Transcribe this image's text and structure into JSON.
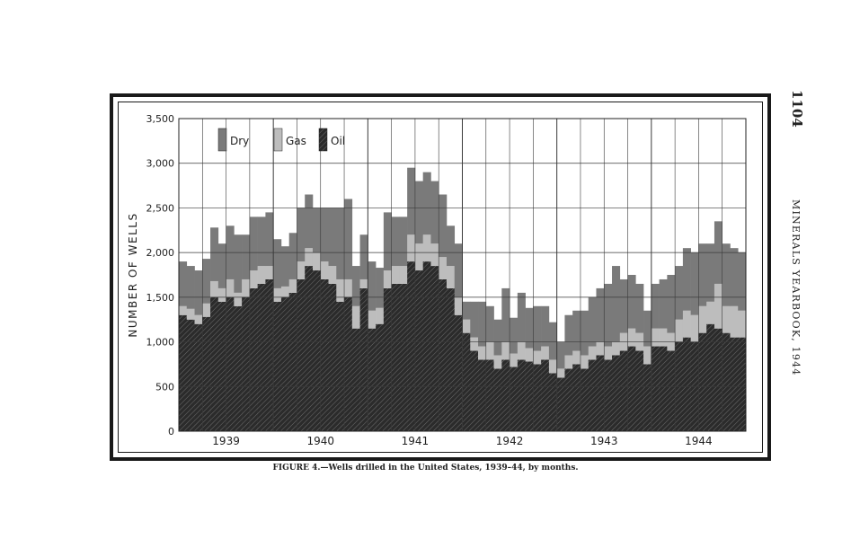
{
  "page": {
    "page_number": "1104",
    "running_head": "MINERALS YEARBOOK, 1944",
    "caption": "FIGURE 4.—Wells drilled in the United States, 1939–44, by months."
  },
  "colors": {
    "dry": "#7a7a7a",
    "gas": "#bdbdbd",
    "oil": "#2b2b2b",
    "grid": "#3a3a3a",
    "ink": "#222222"
  },
  "chart_data": {
    "type": "bar",
    "stacked": true,
    "title": "",
    "xlabel": "",
    "ylabel": "NUMBER OF WELLS",
    "ylim": [
      0,
      3500
    ],
    "yticks": [
      0,
      500,
      1000,
      1500,
      2000,
      2500,
      3000,
      3500
    ],
    "ytick_labels": [
      "0",
      "500",
      "1,000",
      "1,500",
      "2,000",
      "2,500",
      "3,000",
      "3,500"
    ],
    "year_labels": [
      "1939",
      "1940",
      "1941",
      "1942",
      "1943",
      "1944"
    ],
    "months_per_year": 12,
    "legend": {
      "position": "top-left",
      "entries": [
        "Dry",
        "Gas",
        "Oil"
      ]
    },
    "grid": true,
    "series": [
      {
        "name": "Oil",
        "values": [
          1300,
          1250,
          1200,
          1280,
          1500,
          1450,
          1500,
          1400,
          1500,
          1600,
          1650,
          1700,
          1450,
          1500,
          1550,
          1700,
          1850,
          1800,
          1700,
          1650,
          1450,
          1500,
          1150,
          1600,
          1150,
          1200,
          1600,
          1650,
          1650,
          1900,
          1800,
          1900,
          1850,
          1700,
          1600,
          1300,
          1100,
          900,
          800,
          800,
          700,
          800,
          720,
          800,
          780,
          750,
          800,
          650,
          600,
          700,
          750,
          700,
          800,
          850,
          800,
          850,
          900,
          950,
          900,
          750,
          950,
          950,
          900,
          1000,
          1050,
          1000,
          1100,
          1200,
          1150,
          1100,
          1050,
          1050
        ]
      },
      {
        "name": "Gas",
        "values": [
          100,
          120,
          100,
          150,
          180,
          150,
          200,
          150,
          200,
          200,
          200,
          150,
          150,
          120,
          150,
          200,
          200,
          200,
          200,
          200,
          250,
          200,
          250,
          100,
          200,
          180,
          200,
          200,
          200,
          300,
          300,
          300,
          250,
          250,
          250,
          200,
          150,
          150,
          150,
          200,
          150,
          200,
          150,
          200,
          150,
          150,
          150,
          150,
          100,
          150,
          150,
          150,
          150,
          150,
          150,
          150,
          200,
          200,
          200,
          200,
          200,
          200,
          200,
          250,
          300,
          300,
          300,
          250,
          500,
          300,
          350,
          300
        ]
      },
      {
        "name": "Dry",
        "values": [
          500,
          480,
          500,
          500,
          600,
          500,
          600,
          650,
          500,
          600,
          550,
          600,
          550,
          450,
          520,
          600,
          600,
          500,
          600,
          650,
          800,
          900,
          450,
          500,
          550,
          450,
          650,
          550,
          550,
          750,
          700,
          700,
          700,
          700,
          450,
          600,
          200,
          400,
          500,
          400,
          400,
          600,
          400,
          550,
          450,
          500,
          450,
          420,
          300,
          450,
          450,
          500,
          550,
          600,
          700,
          850,
          600,
          600,
          550,
          400,
          500,
          550,
          650,
          600,
          700,
          700,
          700,
          650,
          700,
          700,
          650,
          650
        ]
      }
    ]
  }
}
